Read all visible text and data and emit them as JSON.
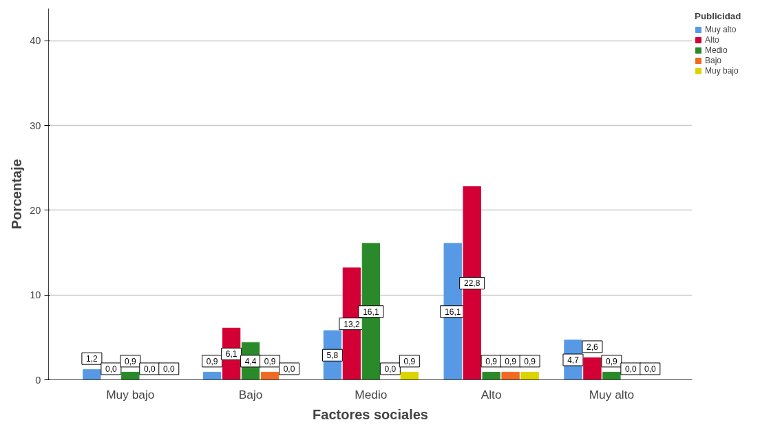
{
  "chart_data": {
    "type": "bar",
    "xlabel": "Factores sociales",
    "ylabel": "Porcentaje",
    "legend_title": "Publicidad",
    "categories": [
      "Muy bajo",
      "Bajo",
      "Medio",
      "Alto",
      "Muy alto"
    ],
    "series": [
      {
        "name": "Muy alto",
        "color": "#5799e4",
        "values": [
          1.2,
          0.9,
          5.8,
          16.1,
          4.7
        ],
        "value_labels": [
          "1,2",
          "0,9",
          "5,8",
          "16,1",
          "4,7"
        ]
      },
      {
        "name": "Alto",
        "color": "#d20035",
        "values": [
          0.0,
          6.1,
          13.2,
          22.8,
          2.6
        ],
        "value_labels": [
          "0,0",
          "6,1",
          "13,2",
          "22,8",
          "2,6"
        ]
      },
      {
        "name": "Medio",
        "color": "#2a8a2a",
        "values": [
          0.9,
          4.4,
          16.1,
          0.9,
          0.9
        ],
        "value_labels": [
          "0,9",
          "4,4",
          "16,1",
          "0,9",
          "0,9"
        ]
      },
      {
        "name": "Bajo",
        "color": "#f26a21",
        "values": [
          0.0,
          0.9,
          0.0,
          0.9,
          0.0
        ],
        "value_labels": [
          "0,0",
          "0,9",
          "0,0",
          "0,9",
          "0,0"
        ]
      },
      {
        "name": "Muy bajo",
        "color": "#dcd400",
        "values": [
          0.0,
          0.0,
          0.9,
          0.9,
          0.0
        ],
        "value_labels": [
          "0,0",
          "0,0",
          "0,9",
          "0,9",
          "0,0"
        ]
      }
    ],
    "ylim": [
      0,
      43.8
    ],
    "yticks": [
      0,
      10,
      20,
      30,
      40
    ],
    "grid": "y",
    "legend": "top right"
  }
}
